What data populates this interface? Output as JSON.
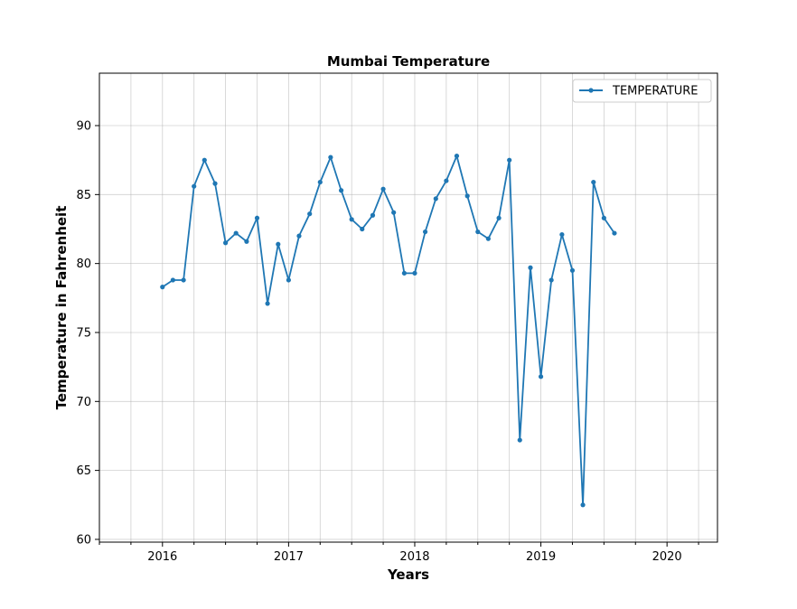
{
  "chart_data": {
    "type": "line",
    "title": "Mumbai Temperature",
    "xlabel": "Years",
    "ylabel": "Temperature in Fahrenheit",
    "xlim": [
      2015.5,
      2020.4
    ],
    "ylim": [
      59.8,
      93.8
    ],
    "x_ticks": [
      2016,
      2017,
      2018,
      2019,
      2020
    ],
    "x_tick_labels": [
      "2016",
      "2017",
      "2018",
      "2019",
      "2020"
    ],
    "y_ticks": [
      60,
      65,
      70,
      75,
      80,
      85,
      90
    ],
    "y_tick_labels": [
      "60",
      "65",
      "70",
      "75",
      "80",
      "85",
      "90"
    ],
    "grid": true,
    "legend_position": "top-right",
    "series": [
      {
        "name": "TEMPERATURE",
        "color": "#1f77b4",
        "marker": "circle",
        "x": [
          2016.0,
          2016.083,
          2016.167,
          2016.25,
          2016.333,
          2016.417,
          2016.5,
          2016.583,
          2016.667,
          2016.75,
          2016.833,
          2016.917,
          2017.0,
          2017.083,
          2017.167,
          2017.25,
          2017.333,
          2017.417,
          2017.5,
          2017.583,
          2017.667,
          2017.75,
          2017.833,
          2017.917,
          2018.0,
          2018.083,
          2018.167,
          2018.25,
          2018.333,
          2018.417,
          2018.5,
          2018.583,
          2018.667,
          2018.75,
          2018.833,
          2018.917,
          2019.0,
          2019.083,
          2019.167,
          2019.25,
          2019.333,
          2019.417,
          2019.5,
          2019.583
        ],
        "y": [
          78.3,
          78.8,
          78.8,
          85.6,
          87.5,
          85.8,
          81.5,
          82.2,
          81.6,
          83.3,
          77.1,
          81.4,
          78.8,
          82.0,
          83.6,
          85.9,
          87.7,
          85.3,
          83.2,
          82.5,
          83.5,
          85.4,
          83.7,
          79.3,
          79.3,
          82.3,
          84.7,
          86.0,
          87.8,
          84.9,
          82.3,
          81.8,
          83.3,
          87.5,
          67.2,
          79.7,
          71.8,
          78.8,
          82.1,
          79.5,
          62.5,
          85.9,
          83.3,
          82.2
        ]
      }
    ]
  }
}
